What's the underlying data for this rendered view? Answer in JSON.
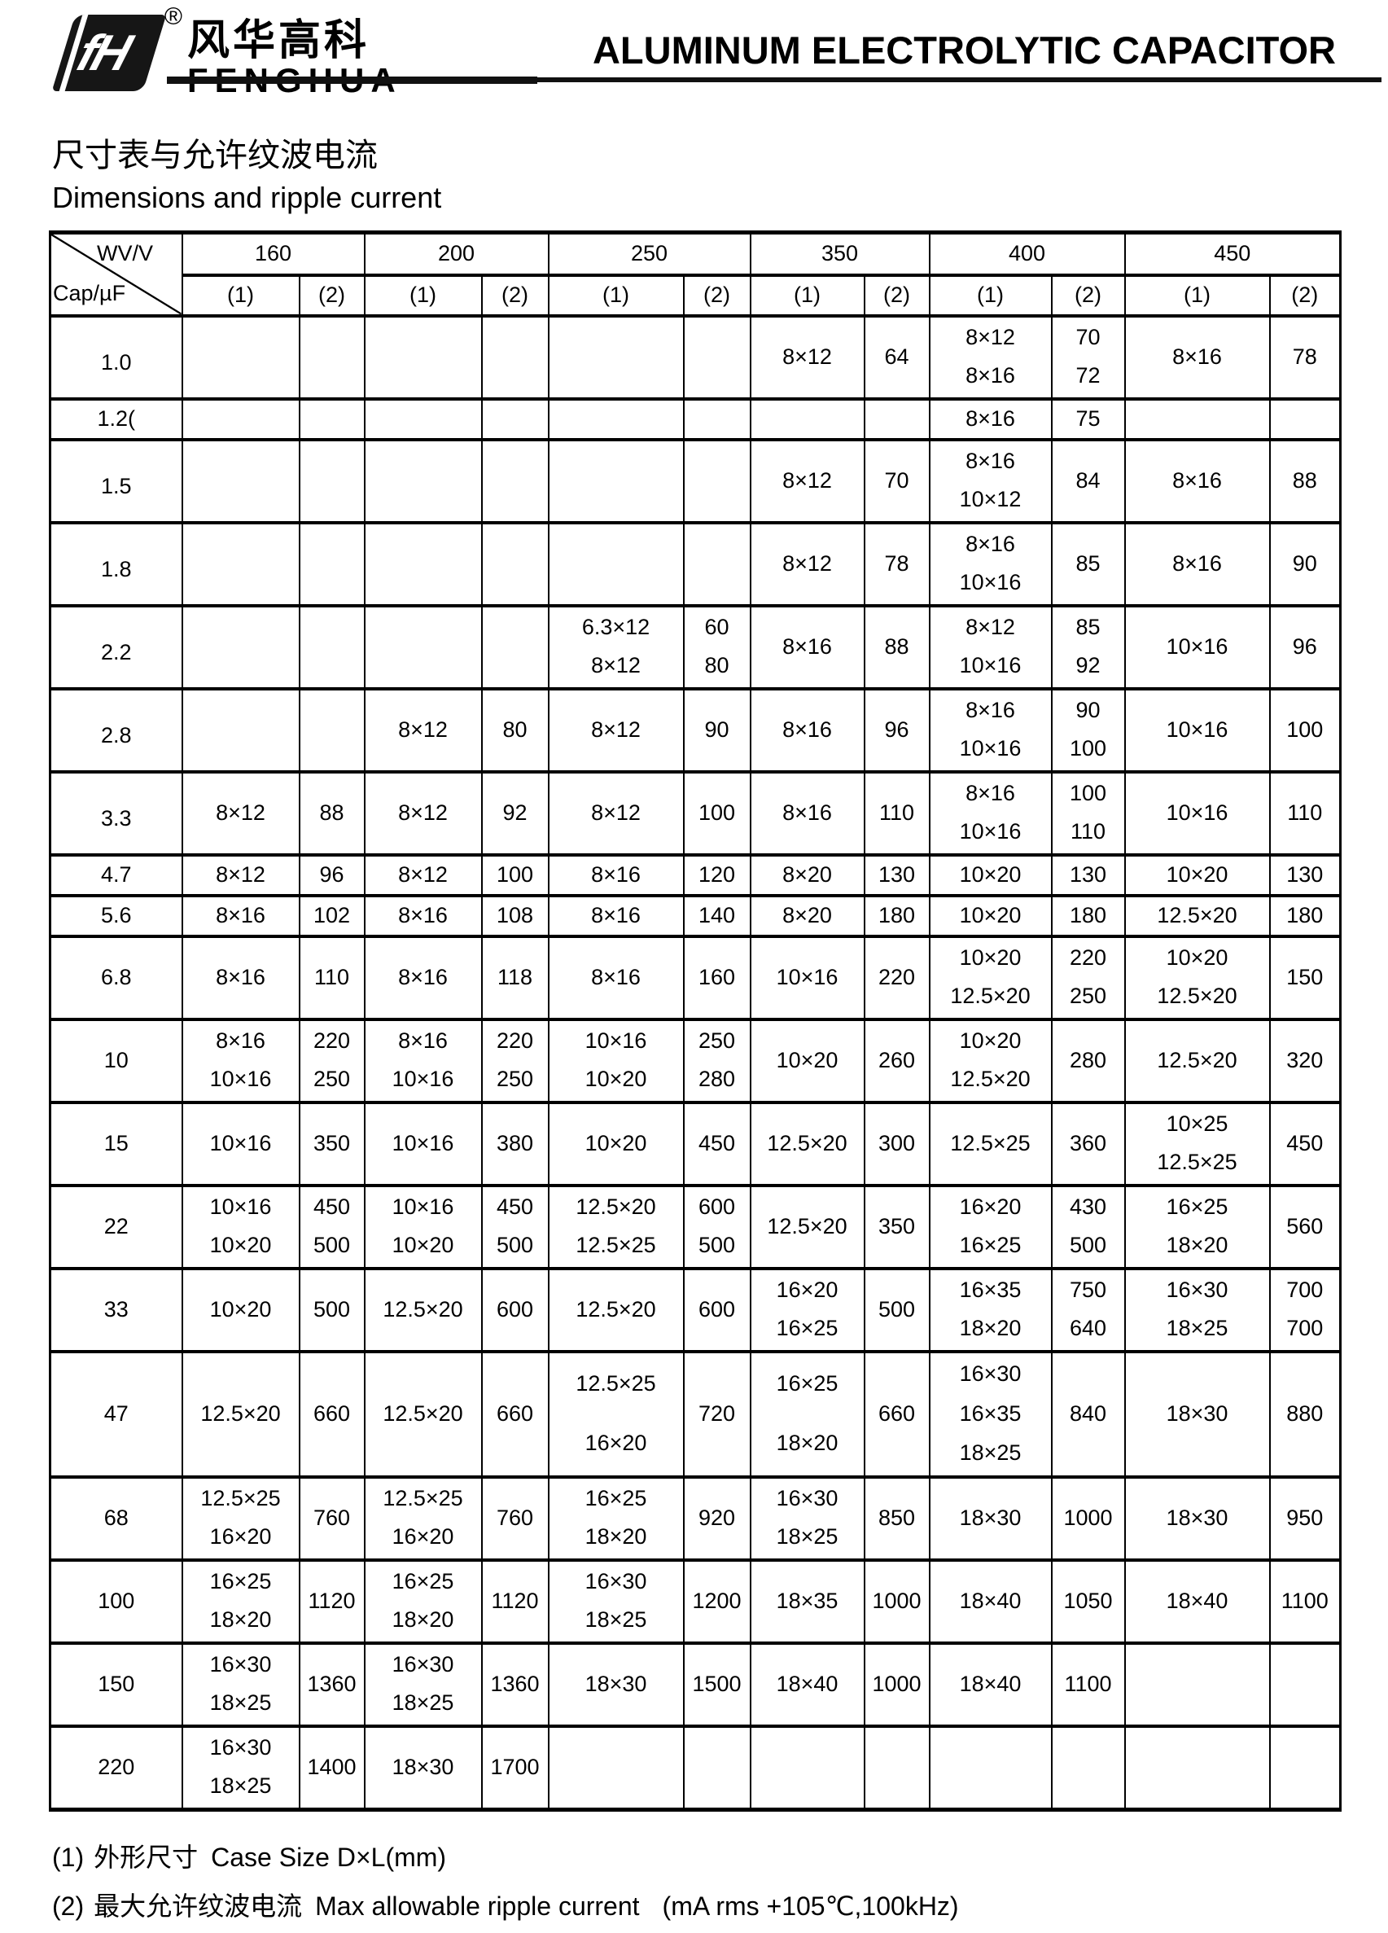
{
  "colors": {
    "text": "#000000",
    "border": "#000000",
    "background": "#ffffff"
  },
  "header": {
    "logo": {
      "monogram": "fH",
      "registered_mark": "®",
      "brand_cn": "风华高科",
      "brand_en": "FENGHUA"
    },
    "title": "ALUMINUM ELECTROLYTIC CAPACITOR"
  },
  "section": {
    "title_cn": "尺寸表与允许纹波电流",
    "title_en": "Dimensions and ripple current"
  },
  "table": {
    "corner": {
      "top_label": "WV/V",
      "bottom_label": "Cap/µF"
    },
    "voltage_groups": [
      "160",
      "200",
      "250",
      "350",
      "400",
      "450"
    ],
    "subheaders": [
      "(1)",
      "(2)"
    ],
    "rows": [
      {
        "cap": "1.0",
        "cells": [
          [],
          [],
          [],
          [],
          [],
          [],
          [
            "8×12"
          ],
          [
            "64"
          ],
          [
            "8×12",
            "8×16"
          ],
          [
            "70",
            "72"
          ],
          [
            "8×16"
          ],
          [
            "78"
          ]
        ]
      },
      {
        "cap": "1.2(",
        "cells": [
          [],
          [],
          [],
          [],
          [],
          [],
          [],
          [],
          [
            "8×16"
          ],
          [
            "75"
          ],
          [],
          []
        ]
      },
      {
        "cap": "1.5",
        "cells": [
          [],
          [],
          [],
          [],
          [],
          [],
          [
            "8×12"
          ],
          [
            "70"
          ],
          [
            "8×16",
            "10×12"
          ],
          [
            "84"
          ],
          [
            "8×16"
          ],
          [
            "88"
          ]
        ]
      },
      {
        "cap": "1.8",
        "cells": [
          [],
          [],
          [],
          [],
          [],
          [],
          [
            "8×12"
          ],
          [
            "78"
          ],
          [
            "8×16",
            "10×16"
          ],
          [
            "85"
          ],
          [
            "8×16"
          ],
          [
            "90"
          ]
        ]
      },
      {
        "cap": "2.2",
        "cells": [
          [],
          [],
          [],
          [],
          [
            "6.3×12",
            "8×12"
          ],
          [
            "60",
            "80"
          ],
          [
            "8×16"
          ],
          [
            "88"
          ],
          [
            "8×12",
            "10×16"
          ],
          [
            "85",
            "92"
          ],
          [
            "10×16"
          ],
          [
            "96"
          ]
        ]
      },
      {
        "cap": "2.8",
        "cells": [
          [],
          [],
          [
            "8×12"
          ],
          [
            "80"
          ],
          [
            "8×12"
          ],
          [
            "90"
          ],
          [
            "8×16"
          ],
          [
            "96"
          ],
          [
            "8×16",
            "10×16"
          ],
          [
            "90",
            "100"
          ],
          [
            "10×16"
          ],
          [
            "100"
          ]
        ]
      },
      {
        "cap": "3.3",
        "cells": [
          [
            "8×12"
          ],
          [
            "88"
          ],
          [
            "8×12"
          ],
          [
            "92"
          ],
          [
            "8×12"
          ],
          [
            "100"
          ],
          [
            "8×16"
          ],
          [
            "110"
          ],
          [
            "8×16",
            "10×16"
          ],
          [
            "100",
            "110"
          ],
          [
            "10×16"
          ],
          [
            "110"
          ]
        ]
      },
      {
        "cap": "4.7",
        "cells": [
          [
            "8×12"
          ],
          [
            "96"
          ],
          [
            "8×12"
          ],
          [
            "100"
          ],
          [
            "8×16"
          ],
          [
            "120"
          ],
          [
            "8×20"
          ],
          [
            "130"
          ],
          [
            "10×20"
          ],
          [
            "130"
          ],
          [
            "10×20"
          ],
          [
            "130"
          ]
        ]
      },
      {
        "cap": "5.6",
        "cells": [
          [
            "8×16"
          ],
          [
            "102"
          ],
          [
            "8×16"
          ],
          [
            "108"
          ],
          [
            "8×16"
          ],
          [
            "140"
          ],
          [
            "8×20"
          ],
          [
            "180"
          ],
          [
            "10×20"
          ],
          [
            "180"
          ],
          [
            "12.5×20"
          ],
          [
            "180"
          ]
        ]
      },
      {
        "cap": "6.8",
        "cells": [
          [
            "8×16"
          ],
          [
            "110"
          ],
          [
            "8×16"
          ],
          [
            "118"
          ],
          [
            "8×16"
          ],
          [
            "160"
          ],
          [
            "10×16"
          ],
          [
            "220"
          ],
          [
            "10×20",
            "12.5×20"
          ],
          [
            "220",
            "250"
          ],
          [
            "10×20",
            "12.5×20"
          ],
          [
            "150"
          ]
        ]
      },
      {
        "cap": "10",
        "cells": [
          [
            "8×16",
            "10×16"
          ],
          [
            "220",
            "250"
          ],
          [
            "8×16",
            "10×16"
          ],
          [
            "220",
            "250"
          ],
          [
            "10×16",
            "10×20"
          ],
          [
            "250",
            "280"
          ],
          [
            "10×20"
          ],
          [
            "260"
          ],
          [
            "10×20",
            "12.5×20"
          ],
          [
            "280"
          ],
          [
            "12.5×20"
          ],
          [
            "320"
          ]
        ]
      },
      {
        "cap": "15",
        "cells": [
          [
            "10×16"
          ],
          [
            "350"
          ],
          [
            "10×16"
          ],
          [
            "380"
          ],
          [
            "10×20"
          ],
          [
            "450"
          ],
          [
            "12.5×20"
          ],
          [
            "300"
          ],
          [
            "12.5×25"
          ],
          [
            "360"
          ],
          [
            "10×25",
            "12.5×25"
          ],
          [
            "450"
          ]
        ]
      },
      {
        "cap": "22",
        "cells": [
          [
            "10×16",
            "10×20"
          ],
          [
            "450",
            "500"
          ],
          [
            "10×16",
            "10×20"
          ],
          [
            "450",
            "500"
          ],
          [
            "12.5×20",
            "12.5×25"
          ],
          [
            "600",
            "500"
          ],
          [
            "12.5×20"
          ],
          [
            "350"
          ],
          [
            "16×20",
            "16×25"
          ],
          [
            "430",
            "500"
          ],
          [
            "16×25",
            "18×20"
          ],
          [
            "560"
          ]
        ]
      },
      {
        "cap": "33",
        "cells": [
          [
            "10×20"
          ],
          [
            "500"
          ],
          [
            "12.5×20"
          ],
          [
            "600"
          ],
          [
            "12.5×20"
          ],
          [
            "600"
          ],
          [
            "16×20",
            "16×25"
          ],
          [
            "500"
          ],
          [
            "16×35",
            "18×20"
          ],
          [
            "750",
            "640"
          ],
          [
            "16×30",
            "18×25"
          ],
          [
            "700",
            "700"
          ]
        ]
      },
      {
        "cap": "47",
        "cells": [
          [
            "12.5×20"
          ],
          [
            "660"
          ],
          [
            "12.5×20"
          ],
          [
            "660"
          ],
          [
            "12.5×25",
            "16×20"
          ],
          [
            "720"
          ],
          [
            "16×25",
            "18×20"
          ],
          [
            "660"
          ],
          [
            "16×30",
            "16×35",
            "18×25"
          ],
          [
            "840"
          ],
          [
            "18×30"
          ],
          [
            "880"
          ]
        ]
      },
      {
        "cap": "68",
        "cells": [
          [
            "12.5×25",
            "16×20"
          ],
          [
            "760"
          ],
          [
            "12.5×25",
            "16×20"
          ],
          [
            "760"
          ],
          [
            "16×25",
            "18×20"
          ],
          [
            "920"
          ],
          [
            "16×30",
            "18×25"
          ],
          [
            "850"
          ],
          [
            "18×30"
          ],
          [
            "1000"
          ],
          [
            "18×30"
          ],
          [
            "950"
          ]
        ]
      },
      {
        "cap": "100",
        "cells": [
          [
            "16×25",
            "18×20"
          ],
          [
            "1120"
          ],
          [
            "16×25",
            "18×20"
          ],
          [
            "1120"
          ],
          [
            "16×30",
            "18×25"
          ],
          [
            "1200"
          ],
          [
            "18×35"
          ],
          [
            "1000"
          ],
          [
            "18×40"
          ],
          [
            "1050"
          ],
          [
            "18×40"
          ],
          [
            "1100"
          ]
        ]
      },
      {
        "cap": "150",
        "cells": [
          [
            "16×30",
            "18×25"
          ],
          [
            "1360"
          ],
          [
            "16×30",
            "18×25"
          ],
          [
            "1360"
          ],
          [
            "18×30"
          ],
          [
            "1500"
          ],
          [
            "18×40"
          ],
          [
            "1000"
          ],
          [
            "18×40"
          ],
          [
            "1100"
          ],
          [],
          []
        ]
      },
      {
        "cap": "220",
        "cells": [
          [
            "16×30",
            "18×25"
          ],
          [
            "1400"
          ],
          [
            "18×30"
          ],
          [
            "1700"
          ],
          [],
          [],
          [],
          [],
          [],
          [],
          [],
          []
        ]
      }
    ]
  },
  "notes": [
    {
      "index": "(1)",
      "text_cn": "外形尺寸",
      "text_en": "Case Size D×L(mm)",
      "condition": ""
    },
    {
      "index": "(2)",
      "text_cn": "最大允许纹波电流",
      "text_en": "Max allowable ripple current",
      "condition": "(mA rms +105℃,100kHz)"
    }
  ]
}
